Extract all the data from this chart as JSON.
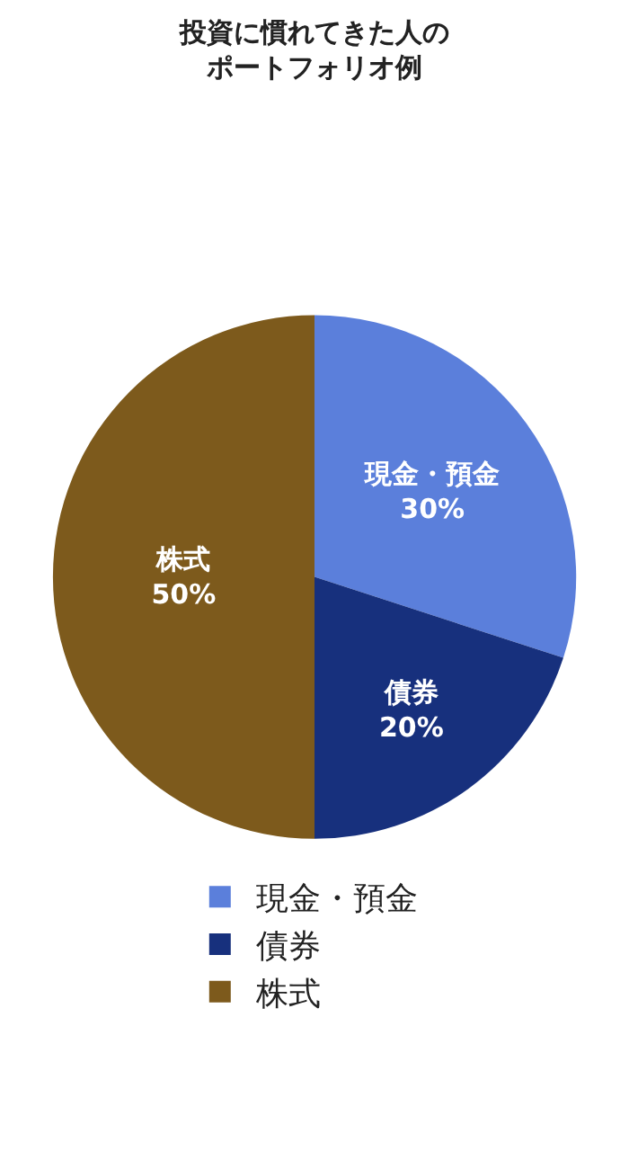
{
  "chart_data": {
    "type": "pie",
    "title": "投資に慣れてきた人のポートフォリオ例",
    "categories": [
      "現金・預金",
      "債券",
      "株式"
    ],
    "values": [
      30,
      20,
      50
    ],
    "value_labels": [
      "30%",
      "20%",
      "50%"
    ],
    "colors": [
      "#5b7fdb",
      "#17307d",
      "#7d5a1c"
    ],
    "legend": "bottom"
  }
}
